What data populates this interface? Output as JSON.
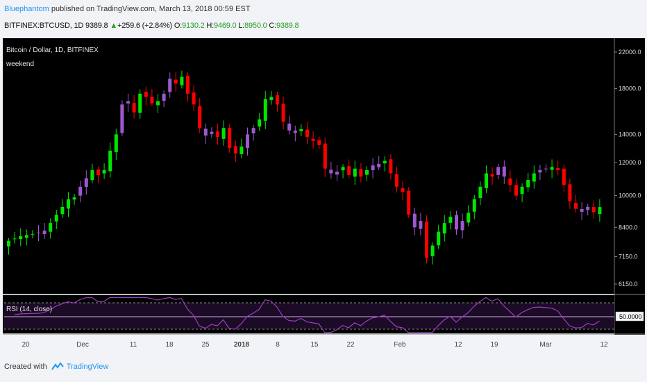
{
  "header": {
    "author": "Bluephantom",
    "published": "published on TradingView.com, March 13, 2018 00:59 EST",
    "symbol": "BITFINEX:BTCUSD, 1D",
    "last": "9389.8",
    "arrow": "▲",
    "change": "+259.6 (+2.84%)",
    "o_label": "O:",
    "o_value": "9130.2",
    "h_label": "H:",
    "h_value": "9469.0",
    "l_label": "L:",
    "l_value": "8950.0",
    "c_label": "C:",
    "c_value": "9389.8"
  },
  "chart": {
    "legend_title": "Bitcoin / Dollar, 1D, BITFINEX",
    "legend_study": "weekend",
    "rsi_label": "RSI (14, close)",
    "rsi_value": "50.0000"
  },
  "footer": {
    "created_with": "Created with",
    "brand": "TradingView"
  },
  "colors": {
    "up": "#00e600",
    "down": "#ff0000",
    "weekend": "#9b59d0",
    "background": "#000000",
    "rsi_line": "#9b3fbf"
  },
  "chart_data": {
    "type": "candlestick",
    "title": "Bitcoin / Dollar, 1D, BITFINEX",
    "y_ticks": [
      "22000.0",
      "18000.0",
      "14000.0",
      "12000.0",
      "10000.0",
      "8400.0",
      "7150.0",
      "6150.0"
    ],
    "y_tick_values": [
      22000,
      18000,
      14000,
      12000,
      10000,
      8400,
      7150,
      6150
    ],
    "y_scale": "log",
    "x_ticks": [
      "20",
      "Dec",
      "11",
      "18",
      "25",
      "2018",
      "8",
      "15",
      "22",
      "Feb",
      "12",
      "19",
      "Mar",
      "12"
    ],
    "rsi": {
      "label": "RSI (14, close)",
      "level": 50,
      "bands": [
        30,
        70
      ]
    },
    "approx_close": [
      7800,
      7900,
      8000,
      8050,
      8100,
      8150,
      8250,
      8600,
      9000,
      9400,
      9800,
      9900,
      10500,
      11000,
      11500,
      11200,
      11500,
      12800,
      14000,
      16500,
      16800,
      15800,
      17500,
      17200,
      16600,
      16800,
      17500,
      19000,
      18500,
      19200,
      17500,
      16500,
      14500,
      13900,
      14200,
      13800,
      14500,
      13000,
      12600,
      13100,
      14000,
      14500,
      15200,
      17000,
      17200,
      16500,
      15000,
      14300,
      14100,
      14400,
      13800,
      13500,
      13200,
      11600,
      11300,
      11400,
      11700,
      11200,
      11600,
      11100,
      11500,
      11800,
      11900,
      12100,
      11300,
      10500,
      10200,
      9000,
      8400,
      8700,
      7100,
      7600,
      8200,
      8600,
      8900,
      8300,
      8700,
      9100,
      9800,
      10500,
      11300,
      11100,
      11700,
      11100,
      10600,
      10000,
      10500,
      10900,
      11300,
      11500,
      11600,
      11700,
      11500,
      10600,
      9700,
      9300,
      9150,
      9400,
      9130,
      9390
    ]
  }
}
